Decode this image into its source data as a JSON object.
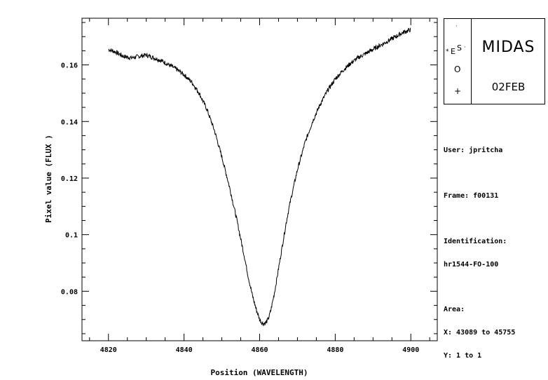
{
  "logo": {
    "app_name": "MIDAS",
    "version": "02FEB",
    "emblem_letters": {
      "e": "E",
      "s": "S",
      "o": "O"
    }
  },
  "info": {
    "user": "User: jpritcha",
    "frame": "Frame: f00131",
    "identification_label": "Identification:",
    "identification_value": "hr1544-FO-100",
    "area_label": "Area:",
    "x_range": "X: 43089 to 45755",
    "y_range": "Y: 1 to 1"
  },
  "chart_data": {
    "type": "line",
    "title": "",
    "xlabel": "Position (WAVELENGTH)",
    "ylabel": "Pixel value (FLUX )",
    "xlim": [
      4813,
      4907
    ],
    "ylim": [
      0.0625,
      0.1765
    ],
    "xticks": [
      4820,
      4840,
      4860,
      4880,
      4900
    ],
    "yticks": [
      0.08,
      0.1,
      0.12,
      0.14,
      0.16
    ],
    "ytick_labels": [
      "0.08",
      "0.1",
      "0.12",
      "0.14",
      "0.16"
    ],
    "grid": false,
    "series": [
      {
        "x": [
          4820,
          4822,
          4824,
          4826,
          4828,
          4830,
          4832,
          4834,
          4836,
          4838,
          4840,
          4842,
          4844,
          4846,
          4848,
          4850,
          4852,
          4854,
          4856,
          4857,
          4858,
          4859,
          4860,
          4860.5,
          4861,
          4861.5,
          4862,
          4862.5,
          4863,
          4864,
          4865,
          4866,
          4867,
          4868,
          4870,
          4872,
          4874,
          4876,
          4878,
          4880,
          4882,
          4884,
          4886,
          4888,
          4890,
          4892,
          4894,
          4896,
          4898,
          4900
        ],
        "y": [
          0.1655,
          0.1645,
          0.163,
          0.1625,
          0.163,
          0.1635,
          0.1625,
          0.1615,
          0.16,
          0.1585,
          0.1565,
          0.154,
          0.15,
          0.1445,
          0.137,
          0.1275,
          0.117,
          0.105,
          0.092,
          0.085,
          0.079,
          0.074,
          0.07,
          0.069,
          0.0685,
          0.0688,
          0.0695,
          0.071,
          0.0735,
          0.08,
          0.088,
          0.096,
          0.104,
          0.111,
          0.123,
          0.1325,
          0.14,
          0.146,
          0.151,
          0.155,
          0.158,
          0.1605,
          0.1625,
          0.164,
          0.1655,
          0.167,
          0.1685,
          0.17,
          0.1715,
          0.1725
        ]
      }
    ]
  }
}
